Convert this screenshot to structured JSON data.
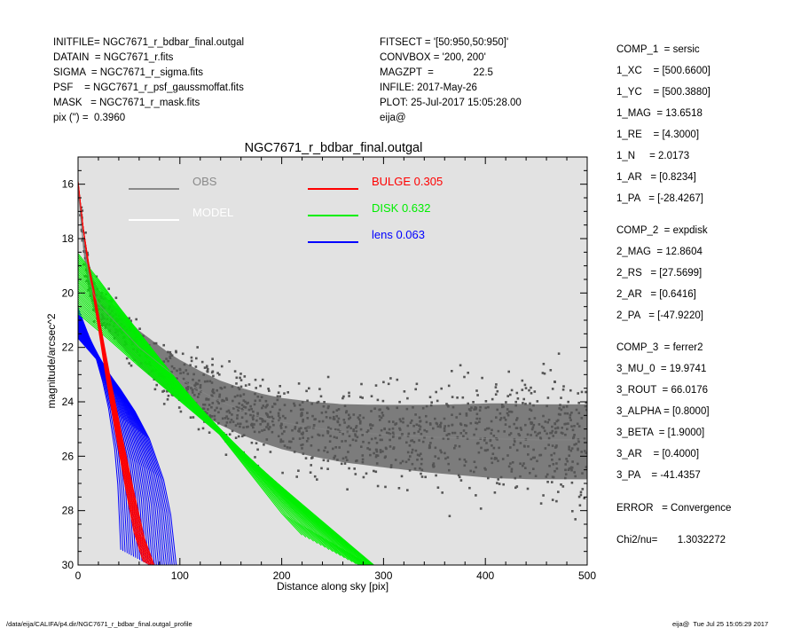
{
  "header_left": [
    "INITFILE= NGC7671_r_bdbar_final.outgal",
    "DATAIN  = NGC7671_r.fits",
    "SIGMA  = NGC7671_r_sigma.fits",
    "PSF    = NGC7671_r_psf_gaussmoffat.fits",
    "MASK   = NGC7671_r_mask.fits",
    "pix (\") =  0.3960"
  ],
  "header_mid": [
    "FITSECT = '[50:950,50:950]'",
    "CONVBOX = '200, 200'",
    "MAGZPT  =              22.5",
    "INFILE: 2017-May-26",
    "PLOT: 25-Jul-2017 15:05:28.00",
    "eija@"
  ],
  "params": [
    "COMP_1  = sersic",
    "1_XC    = [500.6600]",
    "1_YC    = [500.3880]",
    "1_MAG  = 13.6518",
    "1_RE    = [4.3000]",
    "1_N     = 2.0173",
    "1_AR   = [0.8234]",
    "1_PA   = [-28.4267]",
    "COMP_2  = expdisk",
    "2_MAG  = 12.8604",
    "2_RS   = [27.5699]",
    "2_AR   = [0.6416]",
    "2_PA   = [-47.9220]",
    "COMP_3  = ferrer2",
    "3_MU_0  = 19.9741",
    "3_ROUT  = 66.0176",
    "3_ALPHA = [0.8000]",
    "3_BETA  = [1.9000]",
    "3_AR    = [0.4000]",
    "3_PA    = -41.4357",
    "ERROR   = Convergence",
    "Chi2/nu=       1.3032272"
  ],
  "footer_left": "/data/eija/CALIFA/p4.dir/NGC7671_r_bdbar_final.outgal_profile",
  "footer_right": "eija@  Tue Jul 25 15:05:29 2017",
  "colors": {
    "plot_bg": "#e2e2e2",
    "obs": "#8a8a8a",
    "obs_points": "#555555",
    "model": "#ffffff",
    "bulge": "#ff0000",
    "disk": "#00ee00",
    "lens": "#0000ff"
  },
  "chart_data": {
    "type": "scatter",
    "title": "NGC7671_r_bdbar_final.outgal",
    "xlabel": "Distance along sky [pix]",
    "ylabel": "magnitude/arcsec^2",
    "xlim": [
      0,
      500
    ],
    "ylim": [
      30,
      15
    ],
    "y_inverted": true,
    "xticks": [
      0,
      100,
      200,
      300,
      400,
      500
    ],
    "yticks": [
      16,
      18,
      20,
      22,
      24,
      26,
      28,
      30
    ],
    "grid": false,
    "legend_position": "top",
    "legend": [
      {
        "name": "OBS",
        "label": "OBS",
        "color": "#8a8a8a"
      },
      {
        "name": "MODEL",
        "label": "MODEL",
        "color": "#ffffff"
      },
      {
        "name": "BULGE",
        "label": "BULGE  0.305",
        "color": "#ff0000"
      },
      {
        "name": "DISK",
        "label": "DISK  0.632",
        "color": "#00ee00"
      },
      {
        "name": "lens",
        "label": "lens  0.063",
        "color": "#0000ff"
      }
    ],
    "series": [
      {
        "name": "OBS",
        "color": "#555555",
        "x": [
          0,
          5,
          10,
          15,
          20,
          30,
          40,
          50,
          60,
          70,
          80,
          90,
          100,
          120,
          140,
          160,
          180,
          200,
          230,
          260,
          300,
          350,
          400,
          450,
          500
        ],
        "y": [
          16.1,
          18.1,
          19.3,
          20.0,
          20.4,
          20.8,
          21.2,
          21.6,
          22.0,
          22.3,
          22.6,
          22.9,
          23.15,
          23.6,
          24.0,
          24.3,
          24.55,
          24.75,
          24.95,
          25.1,
          25.2,
          25.3,
          25.35,
          25.4,
          25.4
        ]
      },
      {
        "name": "BULGE",
        "color": "#ff0000",
        "x": [
          0,
          5,
          10,
          15,
          20,
          30,
          40,
          50,
          60,
          70
        ],
        "y": [
          16.0,
          17.6,
          18.9,
          19.9,
          21.0,
          23.2,
          25.2,
          27.1,
          28.9,
          30.0
        ]
      },
      {
        "name": "DISK",
        "color": "#00ee00",
        "x": [
          0,
          25,
          50,
          75,
          100,
          125,
          150,
          175,
          200,
          225,
          250,
          275
        ],
        "y": [
          19.65,
          20.6,
          21.6,
          22.55,
          23.5,
          24.45,
          25.4,
          26.35,
          27.3,
          28.25,
          29.2,
          30.0
        ]
      },
      {
        "name": "lens",
        "color": "#0000ff",
        "x": [
          0,
          10,
          20,
          30,
          40,
          50,
          60,
          65,
          70
        ],
        "y": [
          21.1,
          21.7,
          22.3,
          23.0,
          23.8,
          24.8,
          26.3,
          27.6,
          30.0
        ]
      }
    ]
  }
}
